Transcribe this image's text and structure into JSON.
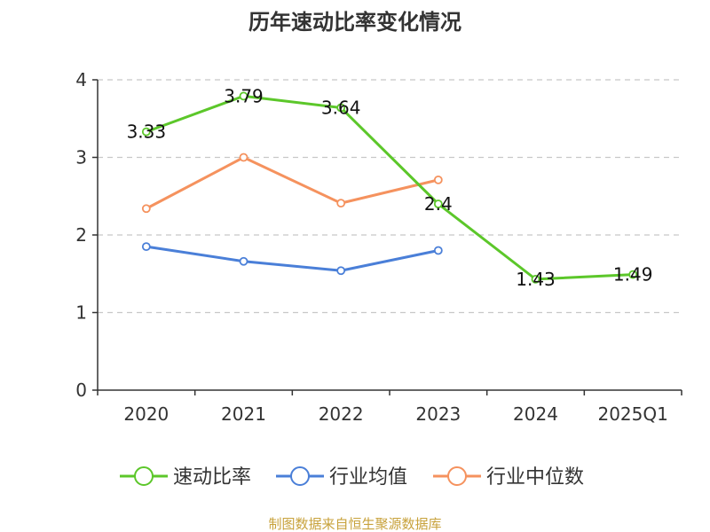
{
  "chart_data": {
    "type": "line",
    "title": "历年速动比率变化情况",
    "categories": [
      "2020",
      "2021",
      "2022",
      "2023",
      "2024",
      "2025Q1"
    ],
    "y_ticks": [
      "0",
      "1",
      "2",
      "3",
      "4"
    ],
    "ylim": [
      0,
      4
    ],
    "grid": "horizontal dashed",
    "legend_position": "bottom",
    "series": [
      {
        "name": "速动比率",
        "values": [
          3.33,
          3.79,
          3.64,
          2.4,
          1.43,
          1.49
        ],
        "labels": [
          "3.33",
          "3.79",
          "3.64",
          "2.4",
          "1.43",
          "1.49"
        ],
        "color": "#5cc72a"
      },
      {
        "name": "行业均值",
        "values": [
          1.85,
          1.66,
          1.54,
          1.8,
          null,
          null
        ],
        "color": "#4a7fd8"
      },
      {
        "name": "行业中位数",
        "values": [
          2.34,
          3.0,
          2.41,
          2.71,
          null,
          null
        ],
        "color": "#f5925e"
      }
    ]
  },
  "source_note": "制图数据来自恒生聚源数据库"
}
